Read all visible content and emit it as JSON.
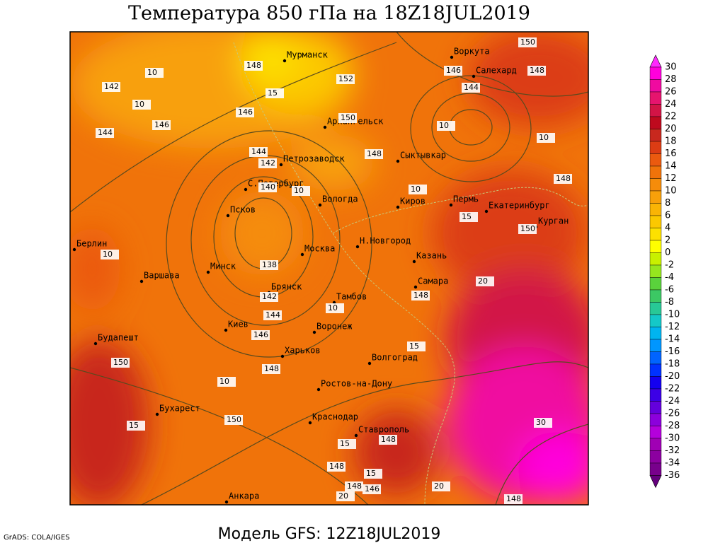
{
  "title": "Температура 850 гПа на 18Z18JUL2019",
  "footer": "Модель GFS: 12Z18JUL2019",
  "credit": "GrADS: COLA/IGES",
  "cities": [
    "Мурманск",
    "Воркута",
    "Салехард",
    "Архангельск",
    "Петрозаводск",
    "Сыктывкар",
    "С.Петербург",
    "Вологда",
    "Киров",
    "Пермь",
    "Екатеринбург",
    "Курган",
    "Псков",
    "Берлин",
    "Москва",
    "Н.Новгород",
    "Казань",
    "Минск",
    "Варшава",
    "Брянск",
    "Самара",
    "Тамбов",
    "Киев",
    "Воронеж",
    "Харьков",
    "Будапешт",
    "Волгоград",
    "Ростов-на-Дону",
    "Бухарест",
    "Краснодар",
    "Ставрополь",
    "Анкара"
  ],
  "contour_labels": [
    148,
    152,
    150,
    146,
    146,
    144,
    150,
    148,
    144,
    142,
    140,
    148,
    148,
    150,
    138,
    142,
    144,
    146,
    148,
    148,
    150,
    150,
    148,
    148,
    148,
    146,
    148,
    144,
    146,
    142,
    10,
    10,
    10,
    10,
    10,
    10,
    10,
    10,
    10,
    15,
    15,
    15,
    15,
    15,
    15,
    20,
    20,
    20,
    30
  ],
  "colorbar": {
    "levels": [
      30,
      28,
      26,
      24,
      22,
      20,
      18,
      16,
      14,
      12,
      10,
      8,
      6,
      4,
      2,
      0,
      -2,
      -4,
      -6,
      -8,
      -10,
      -12,
      -14,
      -16,
      -18,
      -20,
      -22,
      -24,
      -26,
      -28,
      -30,
      -32,
      -34,
      -36
    ],
    "colors": [
      "#ff28ff",
      "#ff00dc",
      "#f00aa0",
      "#e6146e",
      "#d21446",
      "#be0a1e",
      "#c8281e",
      "#dc3c14",
      "#eb5a0f",
      "#f0730a",
      "#f58c0a",
      "#f8a00a",
      "#fab405",
      "#fcc800",
      "#fde100",
      "#ffff00",
      "#c8f000",
      "#96e61e",
      "#5ad23c",
      "#3cc864",
      "#28c896",
      "#14c8c8",
      "#00b4f0",
      "#0096ff",
      "#0064ff",
      "#0032ff",
      "#1400f0",
      "#3c00e6",
      "#6400dc",
      "#8c00dc",
      "#b400dc",
      "#a000b4",
      "#8c00a0",
      "#78008c",
      "#64007d"
    ]
  }
}
